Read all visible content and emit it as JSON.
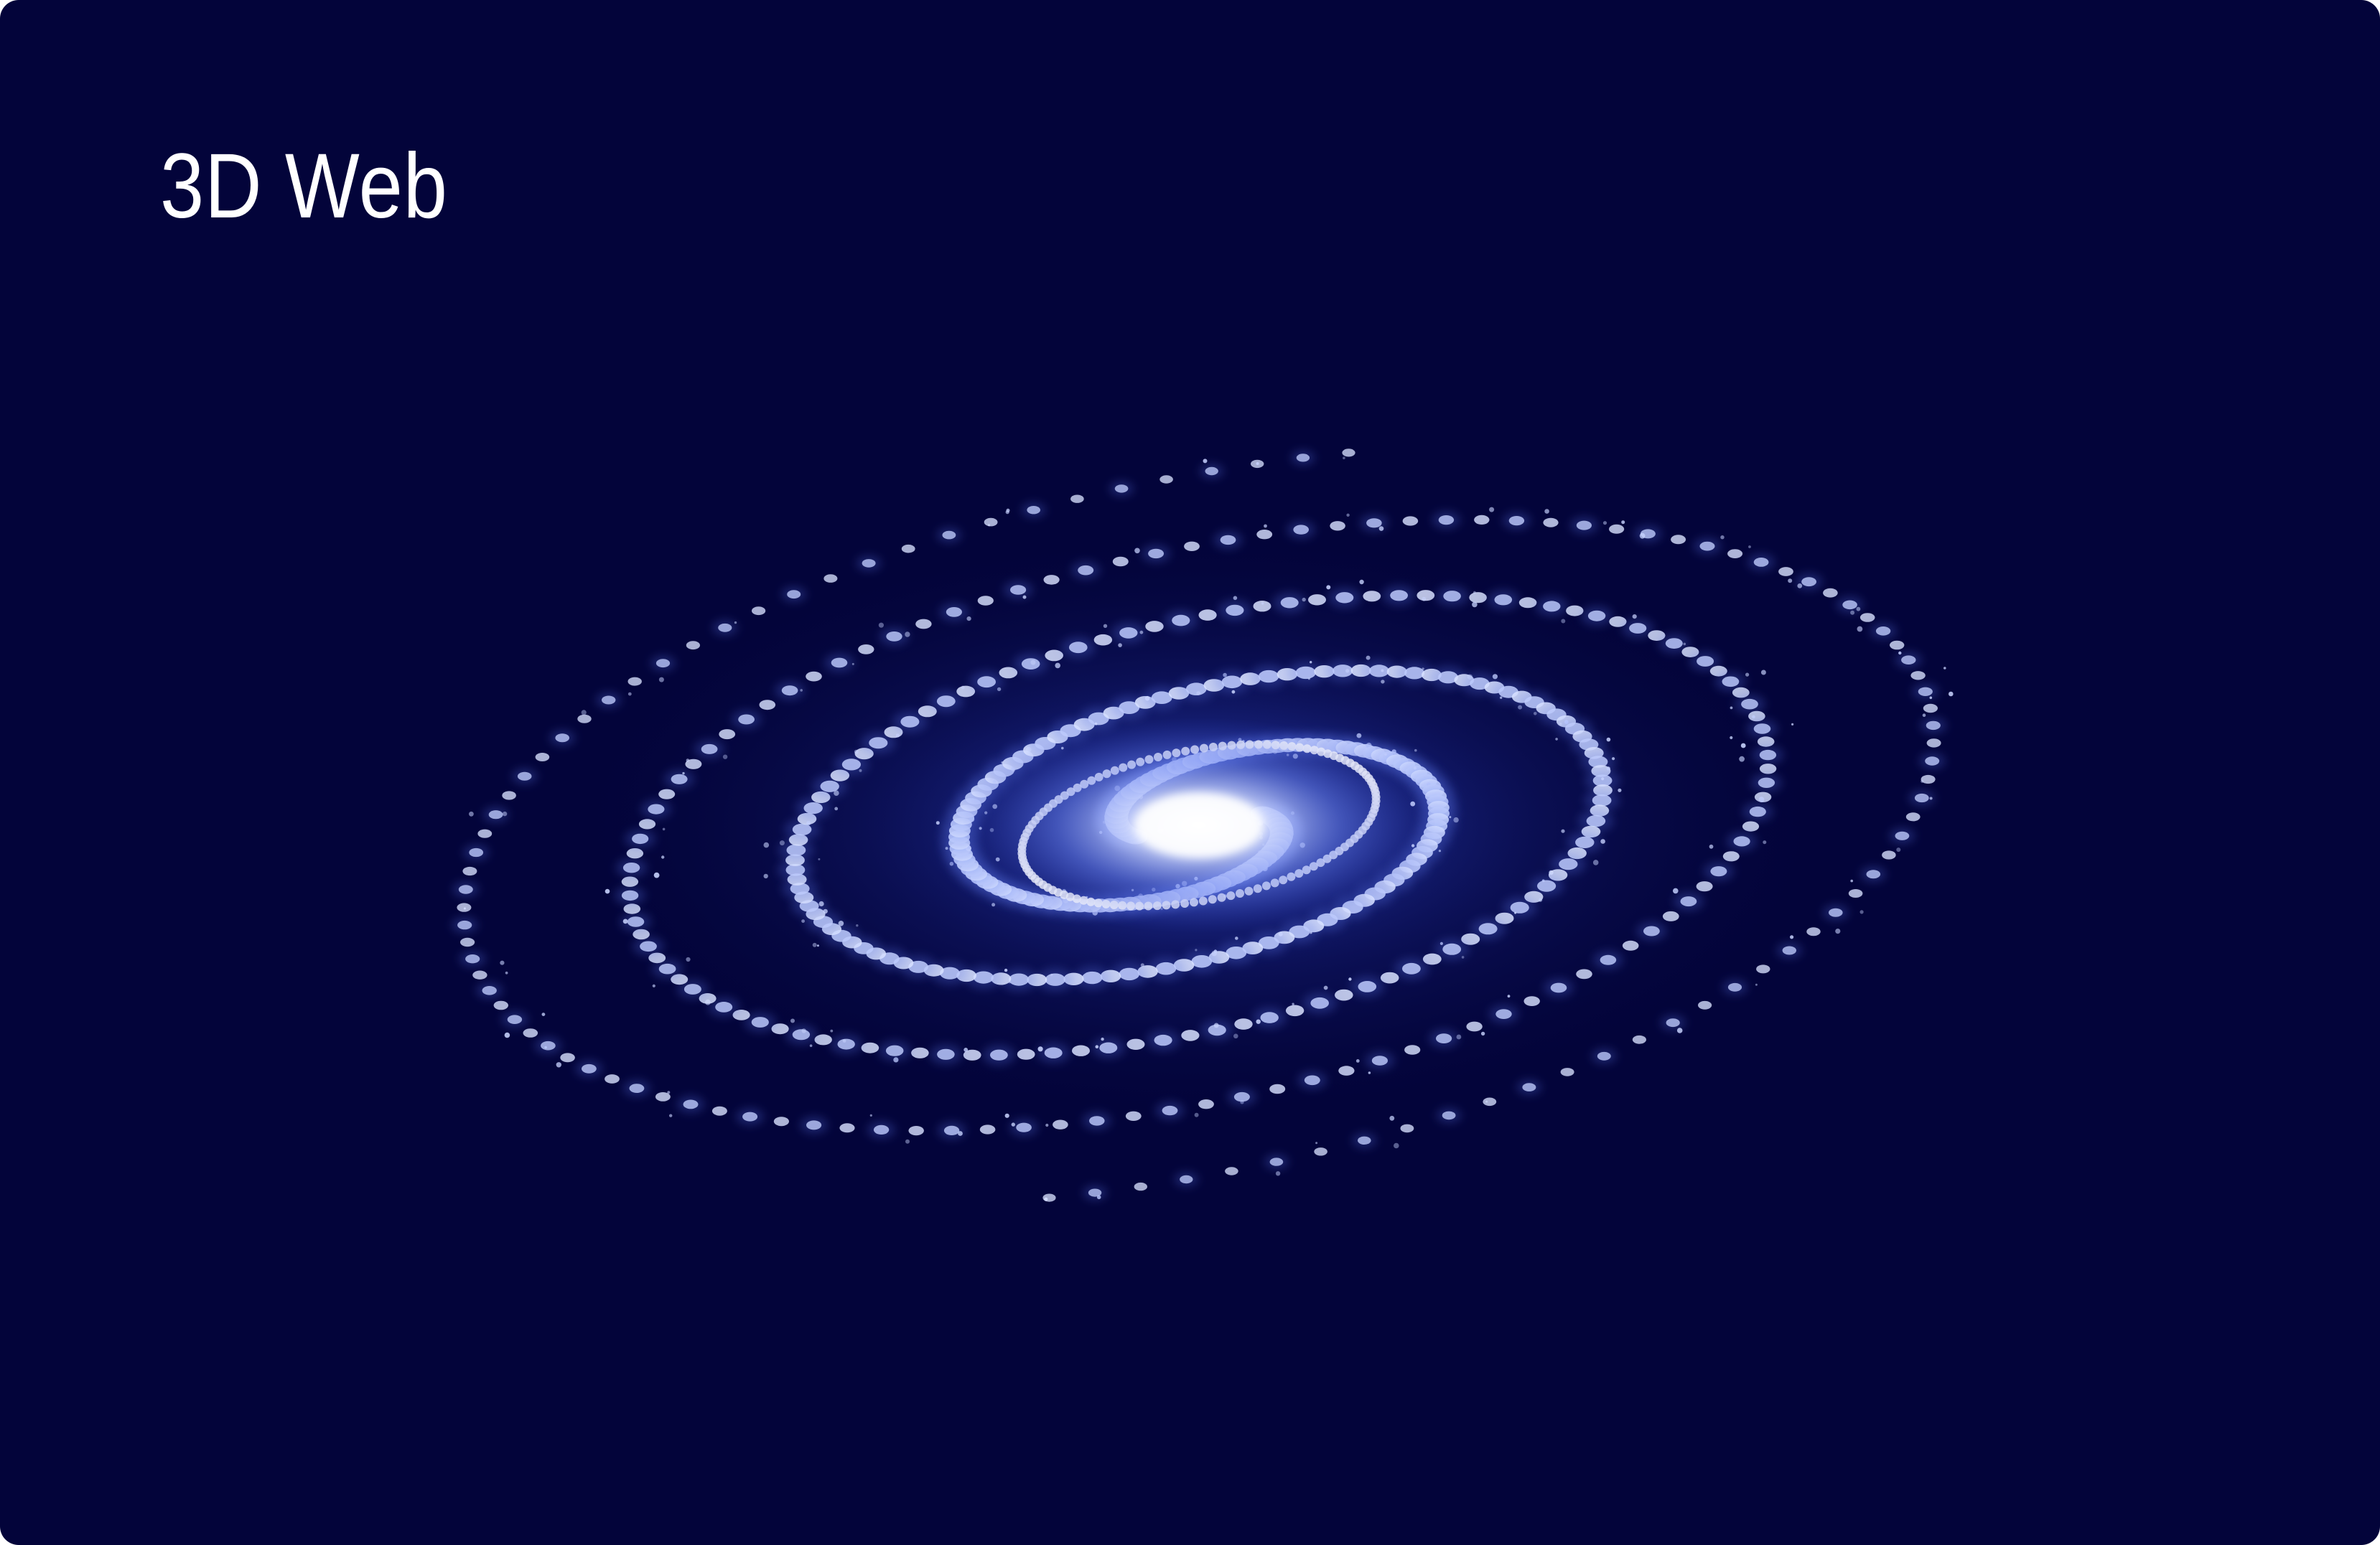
{
  "card": {
    "title": "3D Web"
  },
  "galaxy": {
    "description_icon": "spiral-galaxy-graphic",
    "colors": {
      "background": "#03043a",
      "glow": "#3f5fe0",
      "core": "#ffffff",
      "particle": "#d9e2ff"
    }
  }
}
